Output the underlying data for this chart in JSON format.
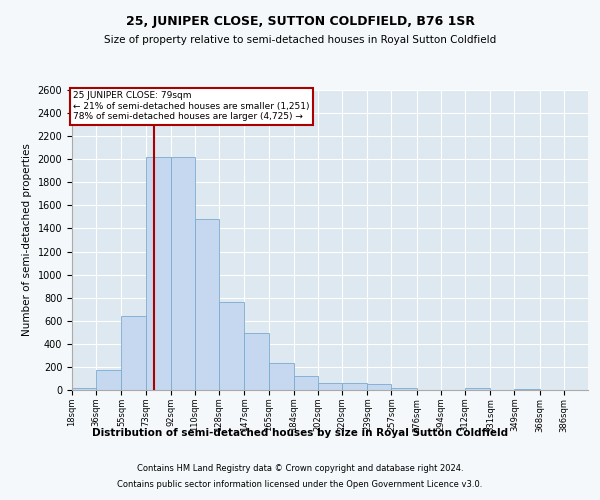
{
  "title": "25, JUNIPER CLOSE, SUTTON COLDFIELD, B76 1SR",
  "subtitle": "Size of property relative to semi-detached houses in Royal Sutton Coldfield",
  "xlabel_bottom": "Distribution of semi-detached houses by size in Royal Sutton Coldfield",
  "ylabel": "Number of semi-detached properties",
  "bar_color": "#c5d8ef",
  "bar_edge_color": "#7aabcf",
  "background_color": "#dde8f0",
  "fig_background_color": "#f5f8fa",
  "grid_color": "#ffffff",
  "annotation_box_color": "#aa0000",
  "vline_color": "#aa0000",
  "annotation_title": "25 JUNIPER CLOSE: 79sqm",
  "annotation_line1": "← 21% of semi-detached houses are smaller (1,251)",
  "annotation_line2": "78% of semi-detached houses are larger (4,725) →",
  "footnote1": "Contains HM Land Registry data © Crown copyright and database right 2024.",
  "footnote2": "Contains public sector information licensed under the Open Government Licence v3.0.",
  "bins": [
    18,
    36,
    55,
    73,
    92,
    110,
    128,
    147,
    165,
    184,
    202,
    220,
    239,
    257,
    276,
    294,
    312,
    331,
    349,
    368,
    386
  ],
  "counts": [
    18,
    175,
    640,
    2020,
    2020,
    1480,
    760,
    490,
    235,
    125,
    65,
    65,
    50,
    20,
    0,
    0,
    20,
    0,
    10,
    0,
    0
  ],
  "vline_x": 79,
  "ylim": [
    0,
    2600
  ],
  "yticks": [
    0,
    200,
    400,
    600,
    800,
    1000,
    1200,
    1400,
    1600,
    1800,
    2000,
    2200,
    2400,
    2600
  ]
}
